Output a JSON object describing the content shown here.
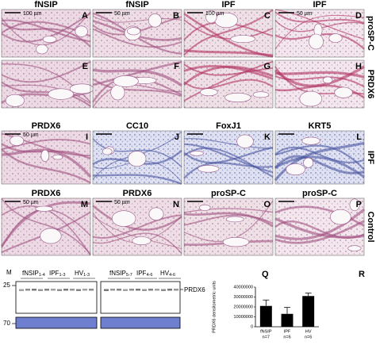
{
  "rows": [
    {
      "label": "proSP-C",
      "panels": [
        {
          "header": "fNSIP",
          "letter": "A",
          "scale": "100 µm"
        },
        {
          "header": "fNSIP",
          "letter": "B",
          "scale": "50 µm"
        },
        {
          "header": "IPF",
          "letter": "C",
          "scale": "100 µm"
        },
        {
          "header": "IPF",
          "letter": "D",
          "scale": "50 µm"
        }
      ]
    },
    {
      "label": "PRDX6",
      "panels": [
        {
          "letter": "E"
        },
        {
          "letter": "F"
        },
        {
          "letter": "G"
        },
        {
          "letter": "H"
        }
      ]
    },
    {
      "label": "IPF",
      "panels": [
        {
          "header": "PRDX6",
          "letter": "I",
          "scale": "50 µm"
        },
        {
          "header": "CC10",
          "letter": "J"
        },
        {
          "header": "FoxJ1",
          "letter": "K"
        },
        {
          "header": "KRT5",
          "letter": "L"
        }
      ]
    },
    {
      "label": "Control",
      "panels": [
        {
          "header": "PRDX6",
          "letter": "M",
          "scale": "50 µm"
        },
        {
          "header": "PRDX6",
          "letter": "N",
          "scale": "50 µm"
        },
        {
          "header": "proSP-C",
          "letter": "O"
        },
        {
          "header": "proSP-C",
          "letter": "P"
        }
      ]
    }
  ],
  "blot": {
    "marker": "M",
    "lanes": [
      {
        "name": "fNSIP",
        "sub": "1-4"
      },
      {
        "name": "IPF",
        "sub": "1-3"
      },
      {
        "name": "HV",
        "sub": "1-3"
      },
      {
        "name": "fNSIP",
        "sub": "5-7"
      },
      {
        "name": "IPF",
        "sub": "4-6"
      },
      {
        "name": "HV",
        "sub": "4-6"
      }
    ],
    "sizes": [
      "25",
      "70"
    ],
    "band": "PRDX6"
  },
  "letters": [
    "Q",
    "R"
  ],
  "chart_data": {
    "type": "bar",
    "y_label": "PRDX6 densitometric units",
    "categories": [
      "fNSIP",
      "IPF",
      "HV"
    ],
    "n_labels": [
      "n=7",
      "n=6",
      "n=6"
    ],
    "values": [
      21000000,
      13000000,
      31000000
    ],
    "errors": [
      6000000,
      6500000,
      3000000
    ],
    "color": "#000000",
    "ylim": [
      0,
      40000000
    ],
    "yticks": [
      0,
      10000000,
      20000000,
      30000000,
      40000000
    ]
  }
}
